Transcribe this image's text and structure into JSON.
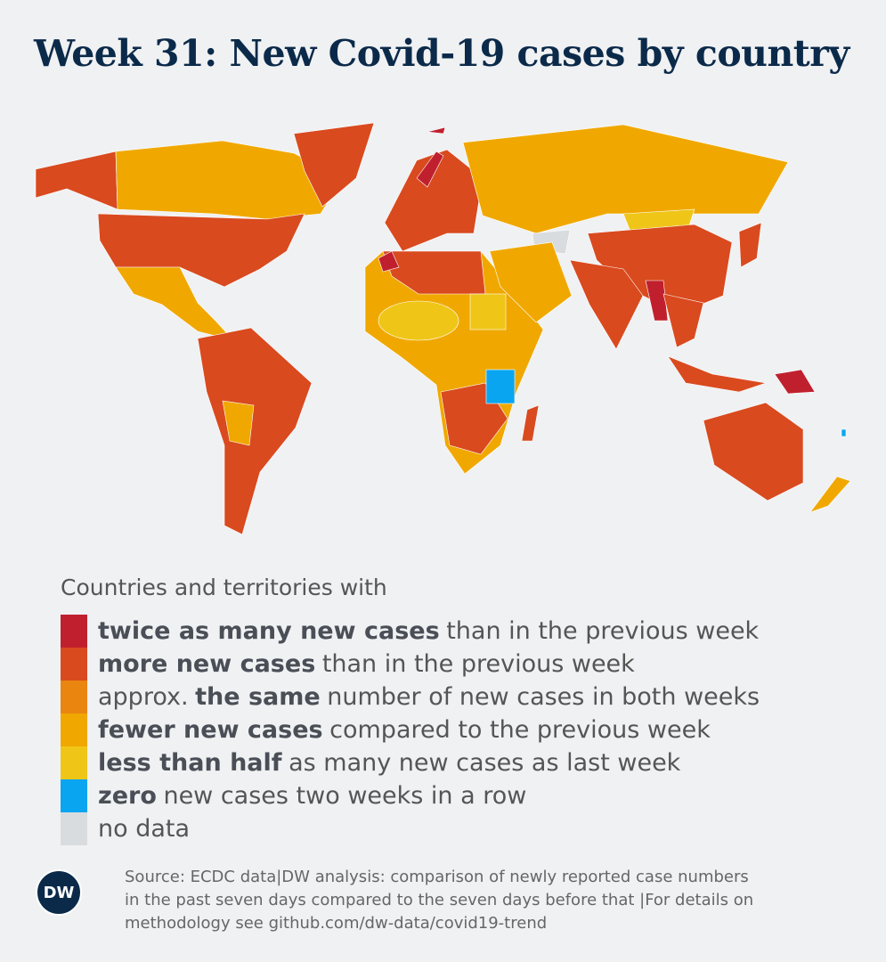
{
  "title": "Week 31: New Covid-19 cases by country",
  "legend": {
    "heading": "Countries and territories with",
    "items": [
      {
        "color": "#c0202e",
        "parts": [
          {
            "text": "twice as many new cases",
            "bold": true
          },
          {
            "text": "than in the previous week",
            "bold": false
          }
        ]
      },
      {
        "color": "#d94a1f",
        "parts": [
          {
            "text": "more new cases",
            "bold": true
          },
          {
            "text": "than in the previous week",
            "bold": false
          }
        ]
      },
      {
        "color": "#ea8510",
        "parts": [
          {
            "text": "approx.",
            "bold": false
          },
          {
            "text": "the same",
            "bold": true
          },
          {
            "text": "number of new cases in both weeks",
            "bold": false
          }
        ]
      },
      {
        "color": "#f0a800",
        "parts": [
          {
            "text": "fewer new cases",
            "bold": true
          },
          {
            "text": "compared to the previous week",
            "bold": false
          }
        ]
      },
      {
        "color": "#efc618",
        "parts": [
          {
            "text": "less than half",
            "bold": true
          },
          {
            "text": "as many new cases as last week",
            "bold": false
          }
        ]
      },
      {
        "color": "#0aa5f0",
        "parts": [
          {
            "text": "zero",
            "bold": true
          },
          {
            "text": "new cases two weeks in a row",
            "bold": false
          }
        ]
      },
      {
        "color": "#d9dcdf",
        "parts": [
          {
            "text": "no data",
            "bold": false
          }
        ]
      }
    ]
  },
  "footer": {
    "logo": "DW",
    "source": [
      "Source: ECDC data|DW analysis: comparison of newly reported case numbers",
      "in the past seven days compared to the seven days before that |For details on",
      "methodology see github.com/dw-data/covid19-trend"
    ]
  }
}
